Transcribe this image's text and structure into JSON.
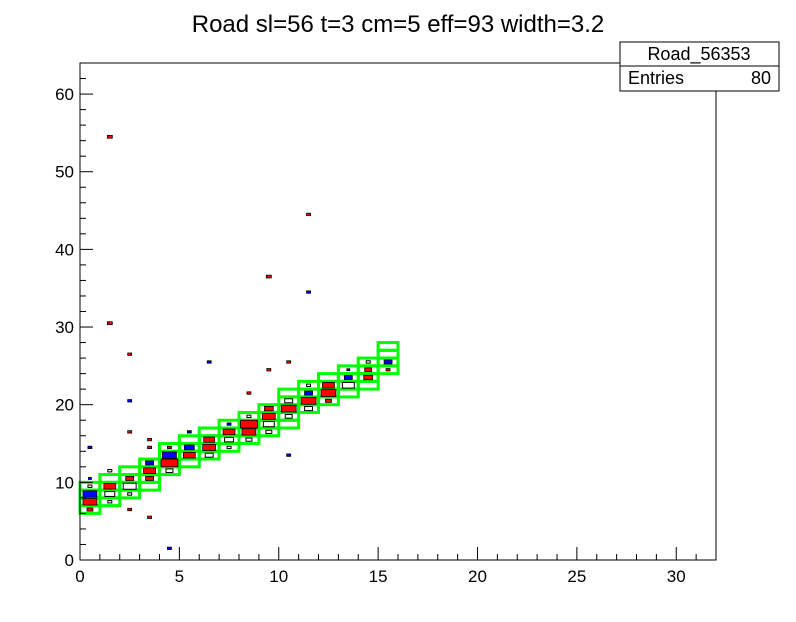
{
  "chart_data": {
    "type": "heatmap",
    "title": "Road sl=56 t=3 cm=5 eff=93 width=3.2",
    "xlabel": "",
    "ylabel": "",
    "xlim": [
      0,
      32
    ],
    "ylim": [
      0,
      64
    ],
    "x_ticks": [
      "0",
      "5",
      "10",
      "15",
      "20",
      "25",
      "30"
    ],
    "y_ticks": [
      "0",
      "10",
      "20",
      "30",
      "40",
      "50",
      "60"
    ],
    "stats_box": {
      "name": "Road_56353",
      "entries_label": "Entries",
      "entries_value": "80"
    },
    "colors": {
      "road": "#00ff00",
      "red": "#ff0000",
      "blue": "#0000ff",
      "open": "#000000"
    },
    "road_cells": [
      {
        "x": 0,
        "y": 6
      },
      {
        "x": 0,
        "y": 7
      },
      {
        "x": 0,
        "y": 8
      },
      {
        "x": 0,
        "y": 9
      },
      {
        "x": 1,
        "y": 7
      },
      {
        "x": 1,
        "y": 8
      },
      {
        "x": 1,
        "y": 9
      },
      {
        "x": 1,
        "y": 10
      },
      {
        "x": 2,
        "y": 8
      },
      {
        "x": 2,
        "y": 9
      },
      {
        "x": 2,
        "y": 10
      },
      {
        "x": 2,
        "y": 11
      },
      {
        "x": 3,
        "y": 9
      },
      {
        "x": 3,
        "y": 10
      },
      {
        "x": 3,
        "y": 11
      },
      {
        "x": 3,
        "y": 12
      },
      {
        "x": 4,
        "y": 11
      },
      {
        "x": 4,
        "y": 12
      },
      {
        "x": 4,
        "y": 13
      },
      {
        "x": 4,
        "y": 14
      },
      {
        "x": 5,
        "y": 12
      },
      {
        "x": 5,
        "y": 13
      },
      {
        "x": 5,
        "y": 14
      },
      {
        "x": 5,
        "y": 15
      },
      {
        "x": 6,
        "y": 13
      },
      {
        "x": 6,
        "y": 14
      },
      {
        "x": 6,
        "y": 15
      },
      {
        "x": 6,
        "y": 16
      },
      {
        "x": 7,
        "y": 14
      },
      {
        "x": 7,
        "y": 15
      },
      {
        "x": 7,
        "y": 16
      },
      {
        "x": 7,
        "y": 17
      },
      {
        "x": 8,
        "y": 15
      },
      {
        "x": 8,
        "y": 16
      },
      {
        "x": 8,
        "y": 17
      },
      {
        "x": 8,
        "y": 18
      },
      {
        "x": 9,
        "y": 16
      },
      {
        "x": 9,
        "y": 17
      },
      {
        "x": 9,
        "y": 18
      },
      {
        "x": 9,
        "y": 19
      },
      {
        "x": 10,
        "y": 17
      },
      {
        "x": 10,
        "y": 18
      },
      {
        "x": 10,
        "y": 19
      },
      {
        "x": 10,
        "y": 20
      },
      {
        "x": 10,
        "y": 21
      },
      {
        "x": 11,
        "y": 19
      },
      {
        "x": 11,
        "y": 20
      },
      {
        "x": 11,
        "y": 21
      },
      {
        "x": 11,
        "y": 22
      },
      {
        "x": 12,
        "y": 20
      },
      {
        "x": 12,
        "y": 21
      },
      {
        "x": 12,
        "y": 22
      },
      {
        "x": 12,
        "y": 23
      },
      {
        "x": 13,
        "y": 21
      },
      {
        "x": 13,
        "y": 22
      },
      {
        "x": 13,
        "y": 23
      },
      {
        "x": 13,
        "y": 24
      },
      {
        "x": 14,
        "y": 22
      },
      {
        "x": 14,
        "y": 23
      },
      {
        "x": 14,
        "y": 24
      },
      {
        "x": 14,
        "y": 25
      },
      {
        "x": 15,
        "y": 24
      },
      {
        "x": 15,
        "y": 25
      },
      {
        "x": 15,
        "y": 26
      },
      {
        "x": 15,
        "y": 27
      }
    ],
    "hit_cells": [
      {
        "x": 0,
        "y": 10,
        "color": "blue",
        "w": 0.15
      },
      {
        "x": 0,
        "y": 9,
        "color": "open",
        "w": 0.2
      },
      {
        "x": 0,
        "y": 8,
        "color": "blue",
        "w": 0.7
      },
      {
        "x": 0,
        "y": 7,
        "color": "red",
        "w": 0.7
      },
      {
        "x": 0,
        "y": 6,
        "color": "red",
        "w": 0.3
      },
      {
        "x": 0,
        "y": 14,
        "color": "blue",
        "w": 0.2
      },
      {
        "x": 1,
        "y": 11,
        "color": "open",
        "w": 0.2
      },
      {
        "x": 1,
        "y": 9,
        "color": "red",
        "w": 0.6
      },
      {
        "x": 1,
        "y": 8,
        "color": "open",
        "w": 0.5
      },
      {
        "x": 1,
        "y": 7,
        "color": "open",
        "w": 0.2
      },
      {
        "x": 1,
        "y": 54,
        "color": "red",
        "w": 0.25
      },
      {
        "x": 1,
        "y": 30,
        "color": "red",
        "w": 0.25
      },
      {
        "x": 2,
        "y": 10,
        "color": "red",
        "w": 0.4
      },
      {
        "x": 2,
        "y": 9,
        "color": "open",
        "w": 0.65
      },
      {
        "x": 2,
        "y": 8,
        "color": "open",
        "w": 0.2
      },
      {
        "x": 2,
        "y": 6,
        "color": "red",
        "w": 0.2
      },
      {
        "x": 2,
        "y": 16,
        "color": "red",
        "w": 0.2
      },
      {
        "x": 2,
        "y": 20,
        "color": "blue",
        "w": 0.2
      },
      {
        "x": 2,
        "y": 26,
        "color": "red",
        "w": 0.2
      },
      {
        "x": 3,
        "y": 12,
        "color": "blue",
        "w": 0.4
      },
      {
        "x": 3,
        "y": 11,
        "color": "red",
        "w": 0.6
      },
      {
        "x": 3,
        "y": 10,
        "color": "red",
        "w": 0.4
      },
      {
        "x": 3,
        "y": 14,
        "color": "red",
        "w": 0.2
      },
      {
        "x": 3,
        "y": 15,
        "color": "red",
        "w": 0.2
      },
      {
        "x": 3,
        "y": 5,
        "color": "red",
        "w": 0.2
      },
      {
        "x": 4,
        "y": 13,
        "color": "blue",
        "w": 0.7
      },
      {
        "x": 4,
        "y": 12,
        "color": "red",
        "w": 0.85
      },
      {
        "x": 4,
        "y": 11,
        "color": "open",
        "w": 0.35
      },
      {
        "x": 4,
        "y": 14,
        "color": "red",
        "w": 0.2
      },
      {
        "x": 4,
        "y": 1,
        "color": "blue",
        "w": 0.2
      },
      {
        "x": 5,
        "y": 14,
        "color": "blue",
        "w": 0.5
      },
      {
        "x": 5,
        "y": 13,
        "color": "red",
        "w": 0.6
      },
      {
        "x": 5,
        "y": 16,
        "color": "blue",
        "w": 0.2
      },
      {
        "x": 6,
        "y": 15,
        "color": "red",
        "w": 0.55
      },
      {
        "x": 6,
        "y": 14,
        "color": "red",
        "w": 0.65
      },
      {
        "x": 6,
        "y": 13,
        "color": "open",
        "w": 0.4
      },
      {
        "x": 6,
        "y": 25,
        "color": "blue",
        "w": 0.2
      },
      {
        "x": 7,
        "y": 17,
        "color": "blue",
        "w": 0.2
      },
      {
        "x": 7,
        "y": 16,
        "color": "red",
        "w": 0.6
      },
      {
        "x": 7,
        "y": 15,
        "color": "open",
        "w": 0.45
      },
      {
        "x": 7,
        "y": 14,
        "color": "open",
        "w": 0.2
      },
      {
        "x": 8,
        "y": 18,
        "color": "open",
        "w": 0.2
      },
      {
        "x": 8,
        "y": 17,
        "color": "red",
        "w": 0.85
      },
      {
        "x": 8,
        "y": 16,
        "color": "red",
        "w": 0.7
      },
      {
        "x": 8,
        "y": 15,
        "color": "open",
        "w": 0.3
      },
      {
        "x": 8,
        "y": 21,
        "color": "red",
        "w": 0.2
      },
      {
        "x": 9,
        "y": 19,
        "color": "red",
        "w": 0.45
      },
      {
        "x": 9,
        "y": 18,
        "color": "red",
        "w": 0.65
      },
      {
        "x": 9,
        "y": 17,
        "color": "open",
        "w": 0.55
      },
      {
        "x": 9,
        "y": 16,
        "color": "open",
        "w": 0.3
      },
      {
        "x": 9,
        "y": 24,
        "color": "red",
        "w": 0.2
      },
      {
        "x": 9,
        "y": 36,
        "color": "red",
        "w": 0.25
      },
      {
        "x": 10,
        "y": 20,
        "color": "open",
        "w": 0.4
      },
      {
        "x": 10,
        "y": 19,
        "color": "red",
        "w": 0.75
      },
      {
        "x": 10,
        "y": 18,
        "color": "open",
        "w": 0.35
      },
      {
        "x": 10,
        "y": 25,
        "color": "red",
        "w": 0.2
      },
      {
        "x": 10,
        "y": 13,
        "color": "blue",
        "w": 0.2
      },
      {
        "x": 11,
        "y": 21,
        "color": "blue",
        "w": 0.4
      },
      {
        "x": 11,
        "y": 20,
        "color": "red",
        "w": 0.75
      },
      {
        "x": 11,
        "y": 19,
        "color": "open",
        "w": 0.4
      },
      {
        "x": 11,
        "y": 22,
        "color": "open",
        "w": 0.2
      },
      {
        "x": 11,
        "y": 34,
        "color": "blue",
        "w": 0.2
      },
      {
        "x": 11,
        "y": 44,
        "color": "red",
        "w": 0.2
      },
      {
        "x": 12,
        "y": 22,
        "color": "red",
        "w": 0.6
      },
      {
        "x": 12,
        "y": 21,
        "color": "red",
        "w": 0.75
      },
      {
        "x": 12,
        "y": 20,
        "color": "red",
        "w": 0.3
      },
      {
        "x": 13,
        "y": 23,
        "color": "blue",
        "w": 0.4
      },
      {
        "x": 13,
        "y": 22,
        "color": "open",
        "w": 0.6
      },
      {
        "x": 13,
        "y": 24,
        "color": "blue",
        "w": 0.15
      },
      {
        "x": 14,
        "y": 24,
        "color": "red",
        "w": 0.35
      },
      {
        "x": 14,
        "y": 23,
        "color": "red",
        "w": 0.45
      },
      {
        "x": 14,
        "y": 25,
        "color": "open",
        "w": 0.2
      },
      {
        "x": 15,
        "y": 25,
        "color": "blue",
        "w": 0.4
      },
      {
        "x": 15,
        "y": 24,
        "color": "red",
        "w": 0.2
      }
    ]
  }
}
